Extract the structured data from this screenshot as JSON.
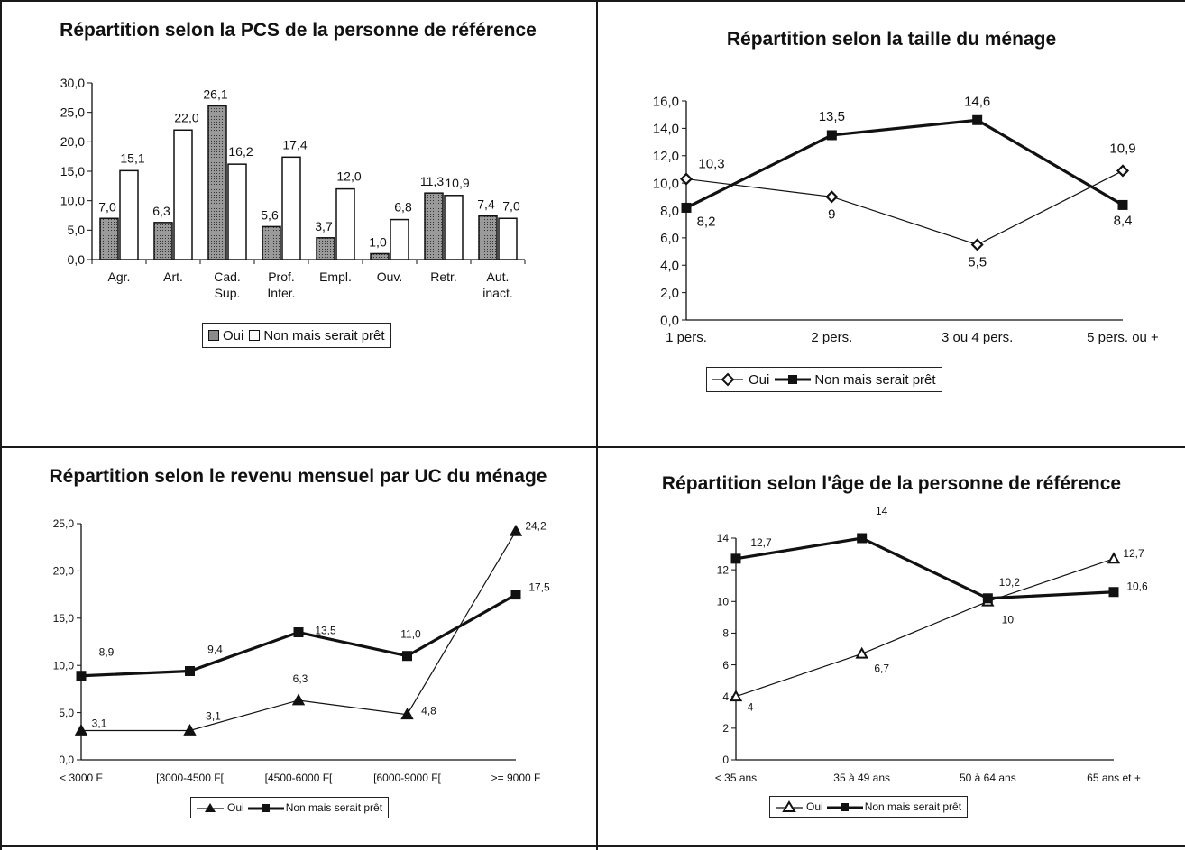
{
  "chart_data": [
    {
      "type": "bar",
      "title": "Répartition selon la PCS de la personne de référence",
      "categories": [
        "Agr.",
        "Art.",
        "Cad. Sup.",
        "Prof. Inter.",
        "Empl.",
        "Ouv.",
        "Retr.",
        "Aut. inact."
      ],
      "category_lines": [
        [
          "Agr."
        ],
        [
          "Art."
        ],
        [
          "Cad.",
          "Sup."
        ],
        [
          "Prof.",
          "Inter."
        ],
        [
          "Empl."
        ],
        [
          "Ouv."
        ],
        [
          "Retr."
        ],
        [
          "Aut.",
          "inact."
        ]
      ],
      "series": [
        {
          "name": "Oui",
          "values": [
            7.0,
            6.3,
            26.1,
            5.6,
            3.7,
            1.0,
            11.3,
            7.4
          ],
          "labels": [
            "7,0",
            "6,3",
            "26,1",
            "5,6",
            "3,7",
            "1,0",
            "11,3",
            "7,4"
          ]
        },
        {
          "name": "Non mais serait prêt",
          "values": [
            15.1,
            22.0,
            16.2,
            17.4,
            12.0,
            6.8,
            10.9,
            7.0
          ],
          "labels": [
            "15,1",
            "22,0",
            "16,2",
            "17,4",
            "12,0",
            "6,8",
            "10,9",
            "7,0"
          ]
        }
      ],
      "ylim": [
        0,
        30
      ],
      "yticks": [
        "0,0",
        "5,0",
        "10,0",
        "15,0",
        "20,0",
        "25,0",
        "30,0"
      ],
      "legend_position": "bottom",
      "grid": false
    },
    {
      "type": "line",
      "title": "Répartition selon la taille du ménage",
      "categories": [
        "1 pers.",
        "2 pers.",
        "3 ou 4 pers.",
        "5 pers. ou +"
      ],
      "series": [
        {
          "name": "Oui",
          "marker": "diamond",
          "values": [
            10.3,
            9,
            5.5,
            10.9
          ],
          "labels": [
            "10,3",
            "9",
            "5,5",
            "10,9"
          ]
        },
        {
          "name": "Non mais serait prêt",
          "marker": "square",
          "values": [
            8.2,
            13.5,
            14.6,
            8.4
          ],
          "labels": [
            "8,2",
            "13,5",
            "14,6",
            "8,4"
          ]
        }
      ],
      "ylim": [
        0,
        16
      ],
      "yticks": [
        "0,0",
        "2,0",
        "4,0",
        "6,0",
        "8,0",
        "10,0",
        "12,0",
        "14,0",
        "16,0"
      ],
      "legend_position": "bottom",
      "grid": false
    },
    {
      "type": "line",
      "title": "Répartition selon le revenu mensuel par UC du ménage",
      "categories": [
        "< 3000 F",
        "[3000-4500 F[",
        "[4500-6000 F[",
        "[6000-9000 F[",
        ">= 9000 F"
      ],
      "series": [
        {
          "name": "Oui",
          "marker": "triangle",
          "values": [
            3.1,
            3.1,
            6.3,
            4.8,
            24.2
          ],
          "labels": [
            "3,1",
            "3,1",
            "6,3",
            "4,8",
            "24,2"
          ]
        },
        {
          "name": "Non mais serait prêt",
          "marker": "square",
          "values": [
            8.9,
            9.4,
            13.5,
            11.0,
            17.5
          ],
          "labels": [
            "8,9",
            "9,4",
            "13,5",
            "11,0",
            "17,5"
          ]
        }
      ],
      "ylim": [
        0,
        25
      ],
      "yticks": [
        "0,0",
        "5,0",
        "10,0",
        "15,0",
        "20,0",
        "25,0"
      ],
      "legend_position": "bottom",
      "grid": false
    },
    {
      "type": "line",
      "title": "Répartition selon l'âge de la personne de référence",
      "categories": [
        "< 35 ans",
        "35 à 49 ans",
        "50 à 64 ans",
        "65 ans et +"
      ],
      "series": [
        {
          "name": "Oui",
          "marker": "triangle",
          "values": [
            4,
            6.7,
            10,
            12.7
          ],
          "labels": [
            "4",
            "6,7",
            "10",
            "12,7"
          ]
        },
        {
          "name": "Non mais serait prêt",
          "marker": "square",
          "values": [
            12.7,
            14,
            10.2,
            10.6
          ],
          "labels": [
            "12,7",
            "14",
            "10,2",
            "10,6"
          ]
        }
      ],
      "ylim": [
        0,
        14
      ],
      "yticks": [
        "0",
        "2",
        "4",
        "6",
        "8",
        "10",
        "12",
        "14"
      ],
      "legend_position": "bottom",
      "grid": false
    }
  ]
}
